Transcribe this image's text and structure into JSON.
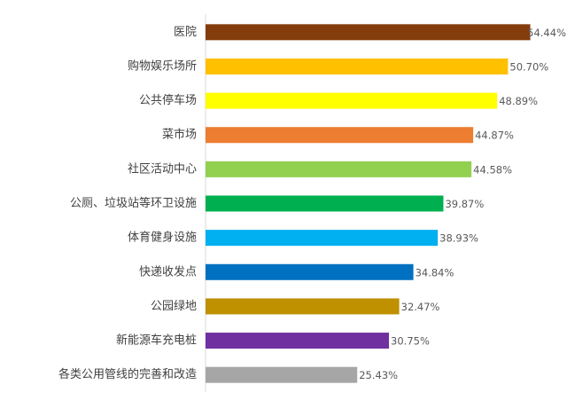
{
  "chart_data": {
    "type": "hbar",
    "categories": [
      "医院",
      "购物娱乐场所",
      "公共停车场",
      "菜市场",
      "社区活动中心",
      "公厕、垃圾站等环卫设施",
      "体育健身设施",
      "快递收发点",
      "公园绿地",
      "新能源车充电桩",
      "各类公用管线的完善和改造"
    ],
    "values": [
      54.44,
      50.7,
      48.89,
      44.87,
      44.58,
      39.87,
      38.93,
      34.84,
      32.47,
      30.75,
      25.43
    ],
    "value_labels": [
      "54.44%",
      "50.70%",
      "48.89%",
      "44.87%",
      "44.58%",
      "39.87%",
      "38.93%",
      "34.84%",
      "32.47%",
      "30.75%",
      "25.43%"
    ],
    "colors": [
      "#843c0c",
      "#ffc000",
      "#ffff00",
      "#ed7d31",
      "#92d050",
      "#00b050",
      "#00b0f0",
      "#0070c0",
      "#bf9000",
      "#7030a0",
      "#a6a6a6"
    ],
    "xlim": [
      0,
      60
    ]
  }
}
